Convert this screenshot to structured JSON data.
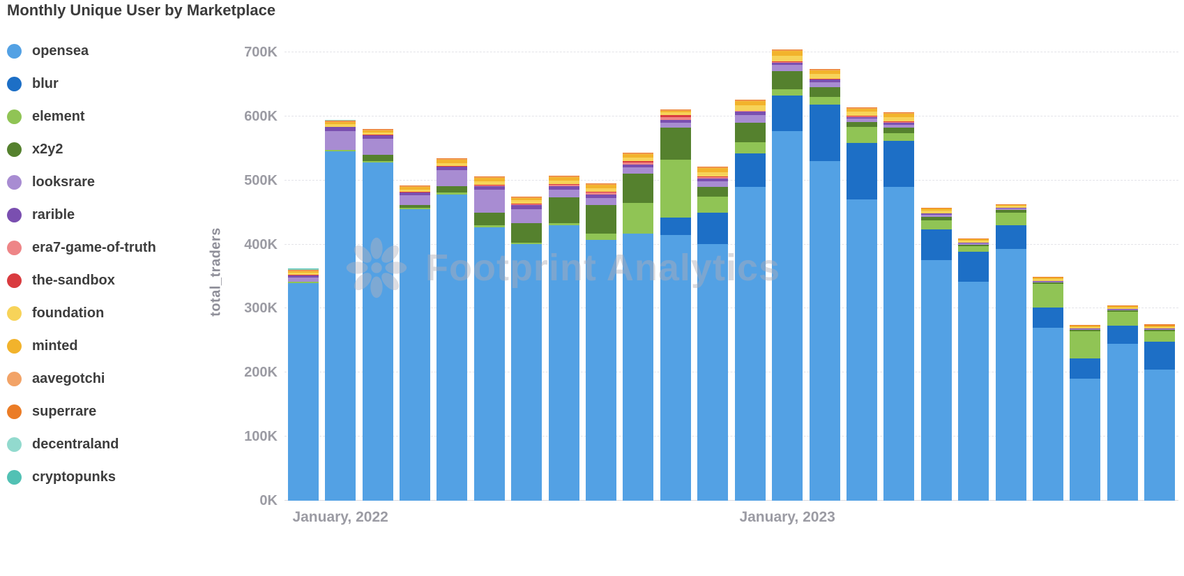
{
  "page": {
    "title": "Monthly Unique User by Marketplace",
    "watermark": "Footprint Analytics"
  },
  "y_axis": {
    "label": "total_traders",
    "ticks": [
      "0K",
      "100K",
      "200K",
      "300K",
      "400K",
      "500K",
      "600K",
      "700K"
    ]
  },
  "x_axis": {
    "labels": [
      {
        "text": "January, 2022",
        "bar_index": 1
      },
      {
        "text": "January, 2023",
        "bar_index": 13
      }
    ]
  },
  "chart_data": {
    "type": "bar",
    "stacked": true,
    "title": "Monthly Unique User by Marketplace",
    "xlabel": "",
    "ylabel": "total_traders",
    "unit": "K",
    "ylim": [
      0,
      700
    ],
    "grid": "horizontal-dashed",
    "legend_position": "left",
    "categories": [
      "Dec 2021",
      "Jan 2022",
      "Feb 2022",
      "Mar 2022",
      "Apr 2022",
      "May 2022",
      "Jun 2022",
      "Jul 2022",
      "Aug 2022",
      "Sep 2022",
      "Oct 2022",
      "Nov 2022",
      "Dec 2022",
      "Jan 2023",
      "Feb 2023",
      "Mar 2023",
      "Apr 2023",
      "May 2023",
      "Jun 2023",
      "Jul 2023",
      "Aug 2023",
      "Sep 2023",
      "Oct 2023",
      "Nov 2023"
    ],
    "series": [
      {
        "name": "opensea",
        "color": "#53A1E4",
        "values": [
          340,
          545,
          528,
          455,
          478,
          427,
          400,
          430,
          407,
          417,
          415,
          400,
          490,
          577,
          530,
          470,
          490,
          375,
          342,
          393,
          270,
          190,
          245,
          205
        ]
      },
      {
        "name": "blur",
        "color": "#1D6FC6",
        "values": [
          0,
          0,
          0,
          0,
          0,
          0,
          0,
          0,
          0,
          0,
          27,
          50,
          52,
          55,
          88,
          88,
          72,
          48,
          47,
          37,
          32,
          32,
          28,
          43
        ]
      },
      {
        "name": "element",
        "color": "#90C455",
        "values": [
          2,
          2,
          2,
          2,
          3,
          3,
          3,
          3,
          10,
          48,
          90,
          25,
          18,
          10,
          12,
          25,
          12,
          15,
          8,
          20,
          36,
          43,
          22,
          17
        ]
      },
      {
        "name": "x2y2",
        "color": "#55812E",
        "values": [
          0,
          0,
          10,
          5,
          10,
          20,
          30,
          40,
          45,
          45,
          50,
          15,
          30,
          28,
          15,
          8,
          8,
          5,
          3,
          4,
          3,
          2,
          2,
          2
        ]
      },
      {
        "name": "looksrare",
        "color": "#A88CD2",
        "values": [
          6,
          30,
          25,
          15,
          25,
          35,
          22,
          12,
          10,
          10,
          8,
          8,
          12,
          10,
          8,
          5,
          5,
          3,
          2,
          2,
          1,
          1,
          1,
          1
        ]
      },
      {
        "name": "rarible",
        "color": "#7A4FB0",
        "values": [
          4,
          6,
          5,
          4,
          5,
          6,
          6,
          6,
          6,
          5,
          4,
          5,
          5,
          4,
          4,
          3,
          3,
          2,
          1,
          1,
          1,
          1,
          1,
          1
        ]
      },
      {
        "name": "era7-game-of-truth",
        "color": "#EE8587",
        "values": [
          0,
          0,
          0,
          0,
          0,
          1,
          2,
          2,
          3,
          3,
          5,
          2,
          1,
          1,
          1,
          1,
          1,
          0,
          0,
          0,
          0,
          0,
          0,
          0
        ]
      },
      {
        "name": "the-sandbox",
        "color": "#D93B3F",
        "values": [
          1,
          1,
          1,
          1,
          1,
          1,
          1,
          1,
          1,
          2,
          3,
          1,
          1,
          1,
          1,
          1,
          1,
          1,
          0,
          0,
          0,
          0,
          0,
          0
        ]
      },
      {
        "name": "foundation",
        "color": "#F7D359",
        "values": [
          3,
          4,
          4,
          4,
          5,
          6,
          5,
          6,
          6,
          6,
          4,
          7,
          8,
          8,
          7,
          6,
          7,
          4,
          3,
          3,
          3,
          2,
          3,
          2
        ]
      },
      {
        "name": "minted",
        "color": "#F2B32C",
        "values": [
          2,
          3,
          3,
          4,
          5,
          5,
          4,
          5,
          5,
          5,
          3,
          6,
          7,
          8,
          6,
          5,
          5,
          3,
          2,
          2,
          2,
          2,
          2,
          2
        ]
      },
      {
        "name": "aavegotchi",
        "color": "#F2A367",
        "values": [
          1,
          1,
          1,
          1,
          1,
          1,
          1,
          1,
          1,
          1,
          1,
          1,
          1,
          1,
          1,
          1,
          1,
          0,
          0,
          0,
          0,
          0,
          0,
          0
        ]
      },
      {
        "name": "superrare",
        "color": "#EB7C26",
        "values": [
          1,
          1,
          1,
          1,
          1,
          1,
          1,
          1,
          1,
          1,
          1,
          1,
          1,
          1,
          1,
          1,
          1,
          1,
          1,
          1,
          1,
          1,
          1,
          2
        ]
      },
      {
        "name": "decentraland",
        "color": "#92DACE",
        "values": [
          1,
          1,
          0,
          0,
          0,
          0,
          0,
          0,
          0,
          0,
          0,
          0,
          0,
          0,
          0,
          0,
          0,
          0,
          0,
          0,
          0,
          0,
          0,
          0
        ]
      },
      {
        "name": "cryptopunks",
        "color": "#52C1B4",
        "values": [
          1,
          0,
          0,
          0,
          0,
          0,
          0,
          0,
          0,
          0,
          0,
          0,
          0,
          0,
          0,
          0,
          0,
          0,
          0,
          0,
          0,
          0,
          0,
          0
        ]
      }
    ]
  }
}
